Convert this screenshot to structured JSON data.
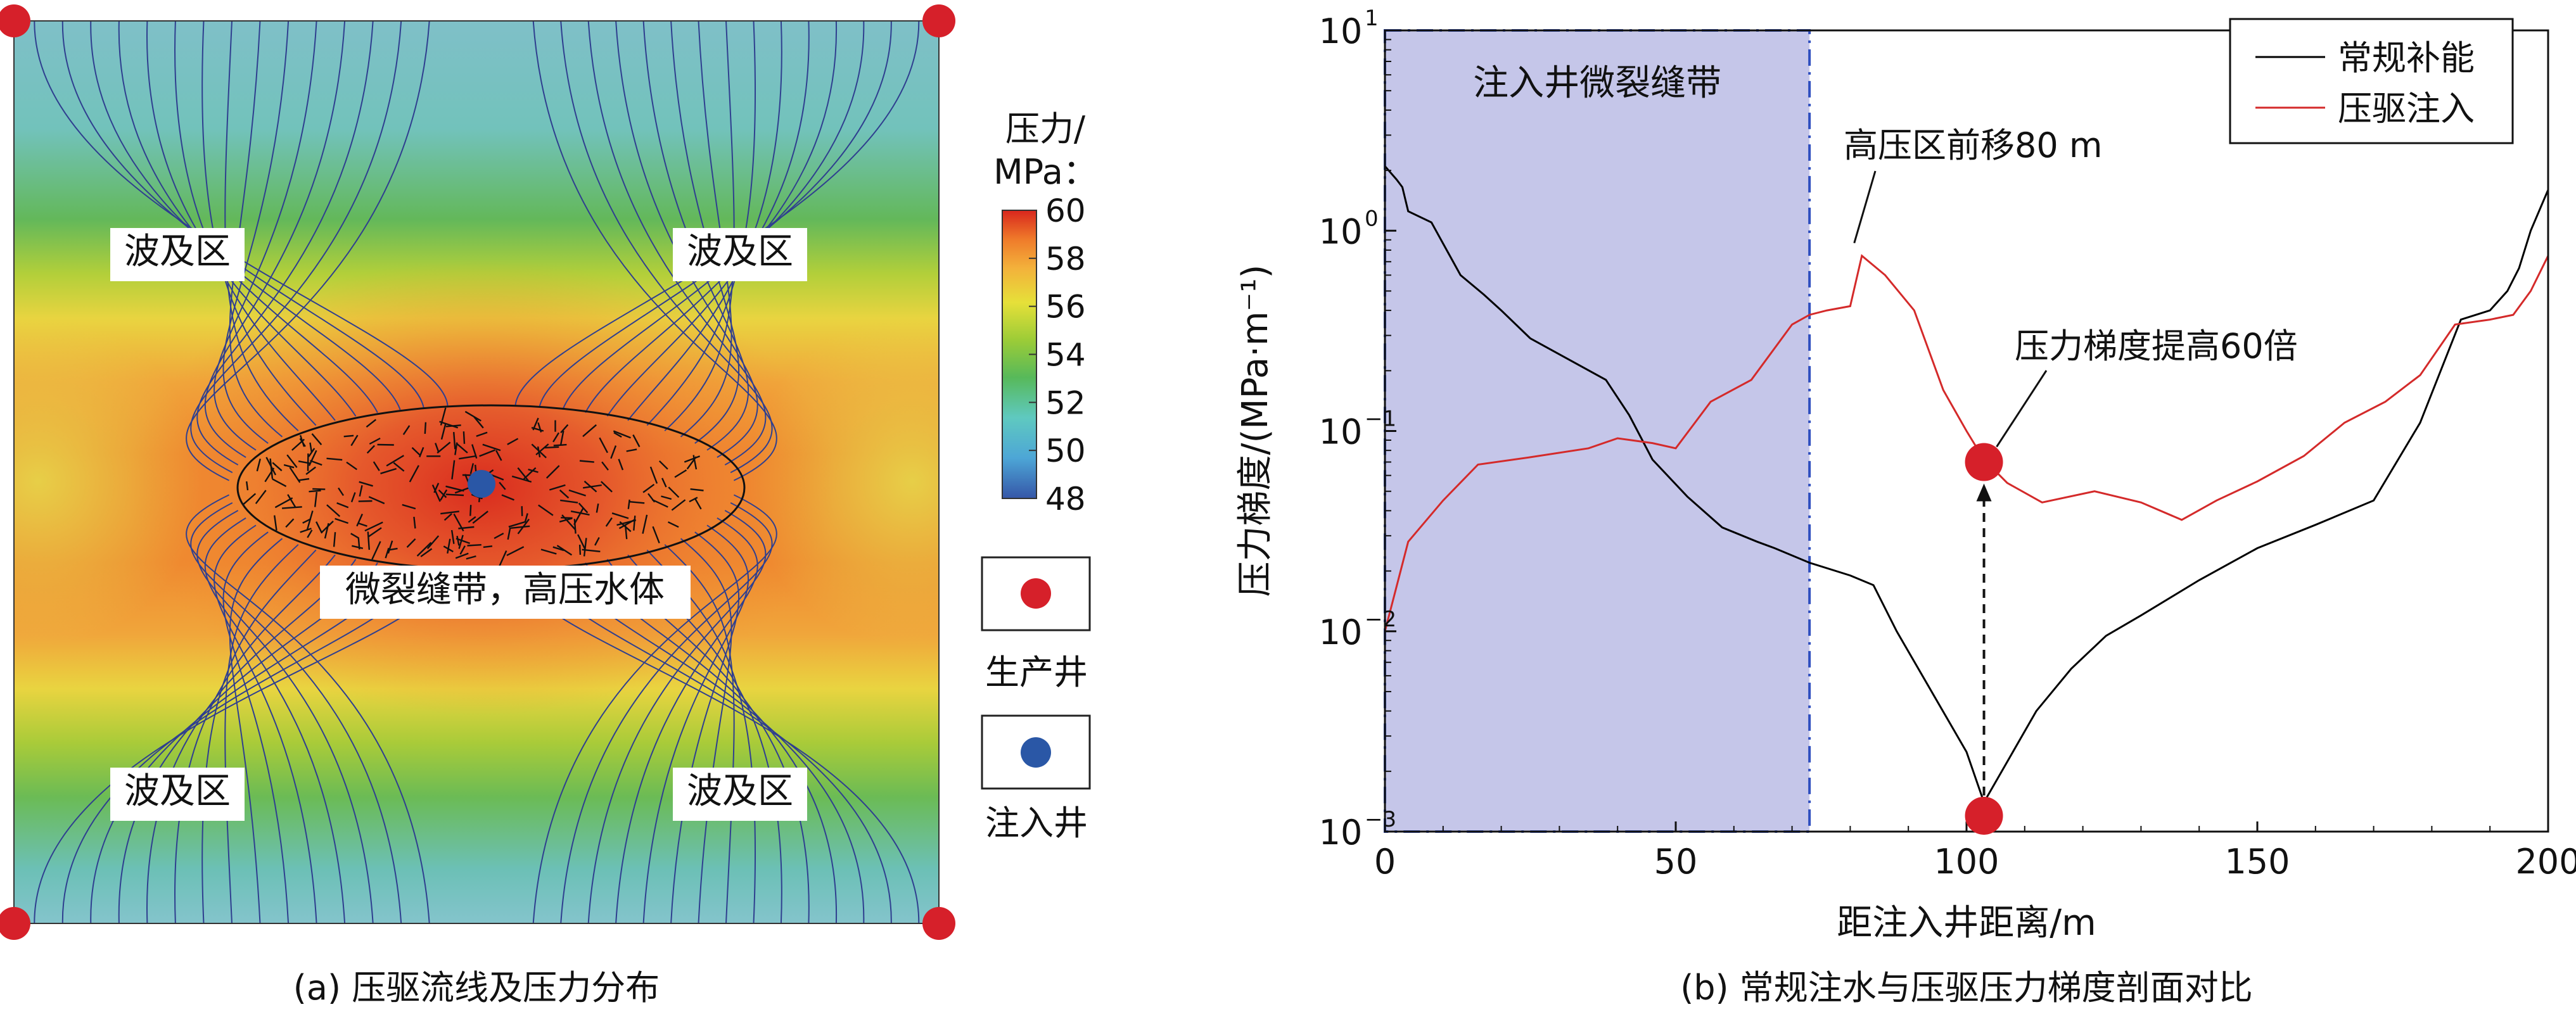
{
  "panel_a": {
    "caption": "(a) 压驱流线及压力分布",
    "zone_label": "波及区",
    "zone_labels": [
      "波及区",
      "波及区",
      "波及区",
      "波及区"
    ],
    "fracture_label": "微裂缝带，高压水体",
    "colorbar_title_line1": "压力/",
    "colorbar_title_line2": "MPa：",
    "colorbar_ticks": [
      "60",
      "58",
      "56",
      "54",
      "52",
      "50",
      "48"
    ],
    "legend_producer": "生产井",
    "legend_injector": "注入井",
    "colors": {
      "producer": "#d6202a",
      "injector": "#2a57a6",
      "streamline": "#2f3f8f",
      "colormap": [
        "#3556a8",
        "#4da6d6",
        "#5fc9c0",
        "#57b95a",
        "#9ccc37",
        "#e6e039",
        "#f3b13b",
        "#ef7a2a",
        "#d8261d"
      ]
    }
  },
  "panel_b": {
    "caption": "(b) 常规注水与压驱压力梯度剖面对比",
    "xlabel": "距注入井距离/m",
    "ylabel": "压力梯度/(MPa·m⁻¹)",
    "band_label": "注入井微裂缝带",
    "annotation_front": "高压区前移80 m",
    "annotation_gradient": "压力梯度提高60倍",
    "x_ticks": [
      "0",
      "50",
      "100",
      "150",
      "200"
    ],
    "y_tick_labels": [
      {
        "base": "10",
        "exp": "1"
      },
      {
        "base": "10",
        "exp": "0"
      },
      {
        "base": "10",
        "exp": "−1"
      },
      {
        "base": "10",
        "exp": "−2"
      },
      {
        "base": "10",
        "exp": "−3"
      }
    ],
    "legend": [
      "常规补能",
      "压驱注入"
    ]
  },
  "chart_data": {
    "type": "line",
    "xlabel": "距注入井距离/m",
    "ylabel": "压力梯度/(MPa·m⁻¹)",
    "xlim": [
      0,
      200
    ],
    "ylim": [
      0.001,
      10
    ],
    "yscale": "log",
    "grid": false,
    "legend_position": "top-right",
    "shaded_band": {
      "label": "注入井微裂缝带",
      "x": [
        0,
        73
      ],
      "color": "#c5c6e9"
    },
    "series": [
      {
        "name": "常规补能",
        "color": "#000000",
        "x": [
          0,
          2,
          3,
          4,
          8,
          13,
          17,
          20,
          25,
          38,
          42,
          46,
          52,
          58,
          64,
          67,
          73,
          80,
          84,
          88,
          94,
          100,
          103,
          112,
          118,
          124,
          130,
          140,
          150,
          160,
          170,
          178,
          185,
          190,
          193,
          195,
          197,
          200
        ],
        "y": [
          2.1,
          1.8,
          1.65,
          1.25,
          1.1,
          0.6,
          0.48,
          0.4,
          0.29,
          0.18,
          0.12,
          0.072,
          0.047,
          0.033,
          0.028,
          0.026,
          0.022,
          0.019,
          0.017,
          0.01,
          0.005,
          0.0025,
          0.0014,
          0.004,
          0.0065,
          0.0095,
          0.012,
          0.018,
          0.026,
          0.034,
          0.045,
          0.11,
          0.36,
          0.4,
          0.5,
          0.65,
          1.0,
          1.6
        ]
      },
      {
        "name": "压驱注入",
        "color": "#d42a2a",
        "x": [
          0,
          4,
          10,
          16,
          25,
          35,
          40,
          46,
          50,
          56,
          63,
          70,
          73,
          76,
          80,
          82,
          86,
          91,
          96,
          100,
          103,
          107,
          113,
          122,
          130,
          137,
          143,
          150,
          158,
          165,
          172,
          178,
          184,
          190,
          194,
          197,
          200
        ],
        "y": [
          0.01,
          0.028,
          0.045,
          0.068,
          0.074,
          0.082,
          0.092,
          0.087,
          0.082,
          0.14,
          0.18,
          0.34,
          0.38,
          0.4,
          0.42,
          0.75,
          0.6,
          0.4,
          0.16,
          0.1,
          0.072,
          0.055,
          0.044,
          0.05,
          0.044,
          0.036,
          0.045,
          0.056,
          0.075,
          0.11,
          0.14,
          0.19,
          0.34,
          0.36,
          0.38,
          0.5,
          0.75
        ]
      }
    ],
    "highlight_points": [
      {
        "x": 103,
        "y": 0.07
      },
      {
        "x": 103,
        "y": 0.0012
      }
    ]
  }
}
